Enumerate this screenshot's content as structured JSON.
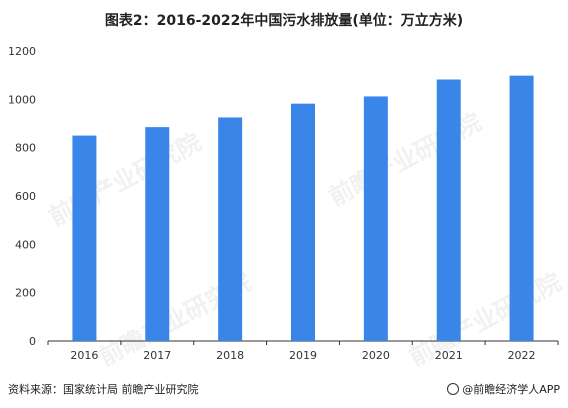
{
  "title": "图表2：2016-2022年中国污水排放量(单位：万立方米)",
  "source": "资料来源：国家统计局 前瞻产业研究院",
  "brand": "@前瞻经济学人APP",
  "watermark": "前瞻产业研究院",
  "colors": {
    "bar": "#3A86E8",
    "axis": "#333333",
    "tick_text": "#333333"
  },
  "chart_data": {
    "type": "bar",
    "categories": [
      "2016",
      "2017",
      "2018",
      "2019",
      "2020",
      "2021",
      "2022"
    ],
    "values": [
      850,
      885,
      925,
      982,
      1012,
      1082,
      1098
    ],
    "ylim": [
      0,
      1200
    ],
    "yticks": [
      0,
      200,
      400,
      600,
      800,
      1000,
      1200
    ],
    "grid": false
  }
}
